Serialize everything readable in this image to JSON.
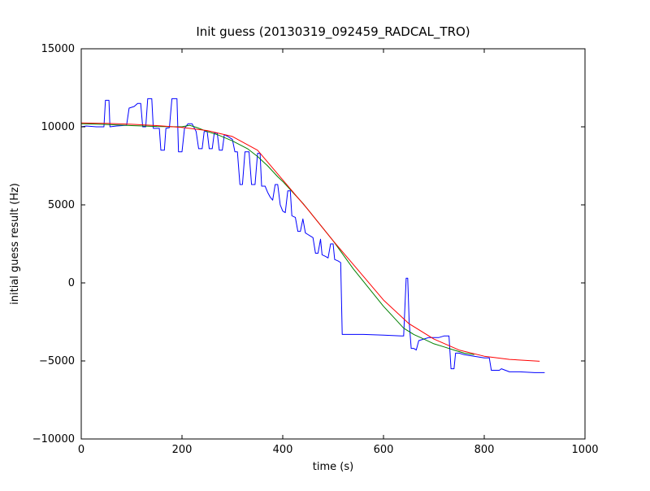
{
  "chart_data": {
    "type": "line",
    "title": "Init guess (20130319_092459_RADCAL_TRO)",
    "xlabel": "time (s)",
    "ylabel": "initial guess result (Hz)",
    "xlim": [
      0,
      1000
    ],
    "ylim": [
      -10000,
      15000
    ],
    "grid": false,
    "legend": false,
    "xticks": {
      "values": [
        0,
        200,
        400,
        600,
        800,
        1000
      ],
      "labels": [
        "0",
        "200",
        "400",
        "600",
        "800",
        "1000"
      ]
    },
    "yticks": {
      "values": [
        -10000,
        -5000,
        0,
        5000,
        10000,
        15000
      ],
      "labels": [
        "−10000",
        "−5000",
        "0",
        "5000",
        "10000",
        "15000"
      ]
    },
    "series": [
      {
        "name": "blue",
        "color": "#0000ff",
        "x": [
          0,
          10,
          30,
          45,
          48,
          55,
          57,
          70,
          90,
          95,
          105,
          112,
          118,
          122,
          128,
          132,
          140,
          143,
          155,
          158,
          165,
          168,
          175,
          180,
          190,
          193,
          200,
          205,
          212,
          220,
          228,
          233,
          240,
          244,
          250,
          254,
          260,
          264,
          270,
          274,
          280,
          284,
          290,
          295,
          300,
          305,
          310,
          315,
          320,
          325,
          333,
          338,
          345,
          350,
          355,
          358,
          365,
          370,
          375,
          380,
          385,
          390,
          395,
          400,
          405,
          410,
          415,
          418,
          425,
          430,
          435,
          440,
          445,
          450,
          455,
          460,
          465,
          470,
          475,
          478,
          485,
          490,
          495,
          500,
          503,
          510,
          515,
          518,
          525,
          560,
          600,
          635,
          640,
          645,
          648,
          651,
          655,
          660,
          665,
          670,
          680,
          690,
          700,
          710,
          720,
          730,
          734,
          740,
          743,
          750,
          760,
          780,
          800,
          810,
          814,
          830,
          834,
          850,
          870,
          900,
          920
        ],
        "y": [
          10000,
          10050,
          10000,
          10000,
          11700,
          11700,
          10000,
          10050,
          10100,
          11200,
          11300,
          11500,
          11500,
          10000,
          10000,
          11800,
          11800,
          9900,
          9900,
          8500,
          8500,
          9900,
          9950,
          11800,
          11800,
          8400,
          8400,
          9900,
          10200,
          10200,
          9700,
          8600,
          8600,
          9700,
          9700,
          8600,
          8600,
          9600,
          9600,
          8500,
          8500,
          9500,
          9400,
          9300,
          9200,
          8400,
          8400,
          6300,
          6300,
          8400,
          8400,
          6300,
          6300,
          8300,
          8300,
          6200,
          6200,
          5800,
          5500,
          5300,
          6300,
          6300,
          5000,
          4600,
          4500,
          5900,
          5900,
          4300,
          4200,
          3300,
          3300,
          4100,
          3200,
          3100,
          3000,
          2900,
          1900,
          1900,
          2800,
          1800,
          1700,
          1600,
          2500,
          2500,
          1500,
          1400,
          1300,
          -3300,
          -3300,
          -3300,
          -3350,
          -3400,
          -3400,
          300,
          300,
          -2500,
          -4200,
          -4200,
          -4300,
          -3700,
          -3600,
          -3500,
          -3500,
          -3500,
          -3400,
          -3400,
          -5500,
          -5500,
          -4500,
          -4500,
          -4600,
          -4700,
          -4800,
          -4800,
          -5600,
          -5600,
          -5500,
          -5700,
          -5700,
          -5750,
          -5750
        ]
      },
      {
        "name": "green",
        "color": "#008000",
        "x": [
          0,
          50,
          100,
          150,
          200,
          215,
          230,
          250,
          270,
          300,
          330,
          350,
          370,
          390,
          400,
          420,
          440,
          460,
          480,
          500,
          520,
          540,
          560,
          580,
          600,
          620,
          640,
          660,
          680,
          700,
          720,
          740,
          760,
          780
        ],
        "y": [
          10200,
          10150,
          10080,
          10020,
          10000,
          10100,
          9950,
          9700,
          9500,
          9100,
          8600,
          8100,
          7500,
          6800,
          6500,
          5800,
          5100,
          4300,
          3500,
          2700,
          1800,
          900,
          100,
          -700,
          -1500,
          -2200,
          -2900,
          -3300,
          -3600,
          -3900,
          -4100,
          -4300,
          -4500,
          -4600
        ]
      },
      {
        "name": "red",
        "color": "#ff0000",
        "x": [
          0,
          50,
          100,
          150,
          200,
          250,
          300,
          350,
          400,
          450,
          500,
          550,
          600,
          650,
          700,
          750,
          800,
          850,
          900,
          910
        ],
        "y": [
          10250,
          10220,
          10160,
          10080,
          9960,
          9760,
          9380,
          8500,
          6600,
          4700,
          2700,
          800,
          -1100,
          -2600,
          -3600,
          -4300,
          -4700,
          -4900,
          -5000,
          -5020
        ]
      }
    ]
  }
}
